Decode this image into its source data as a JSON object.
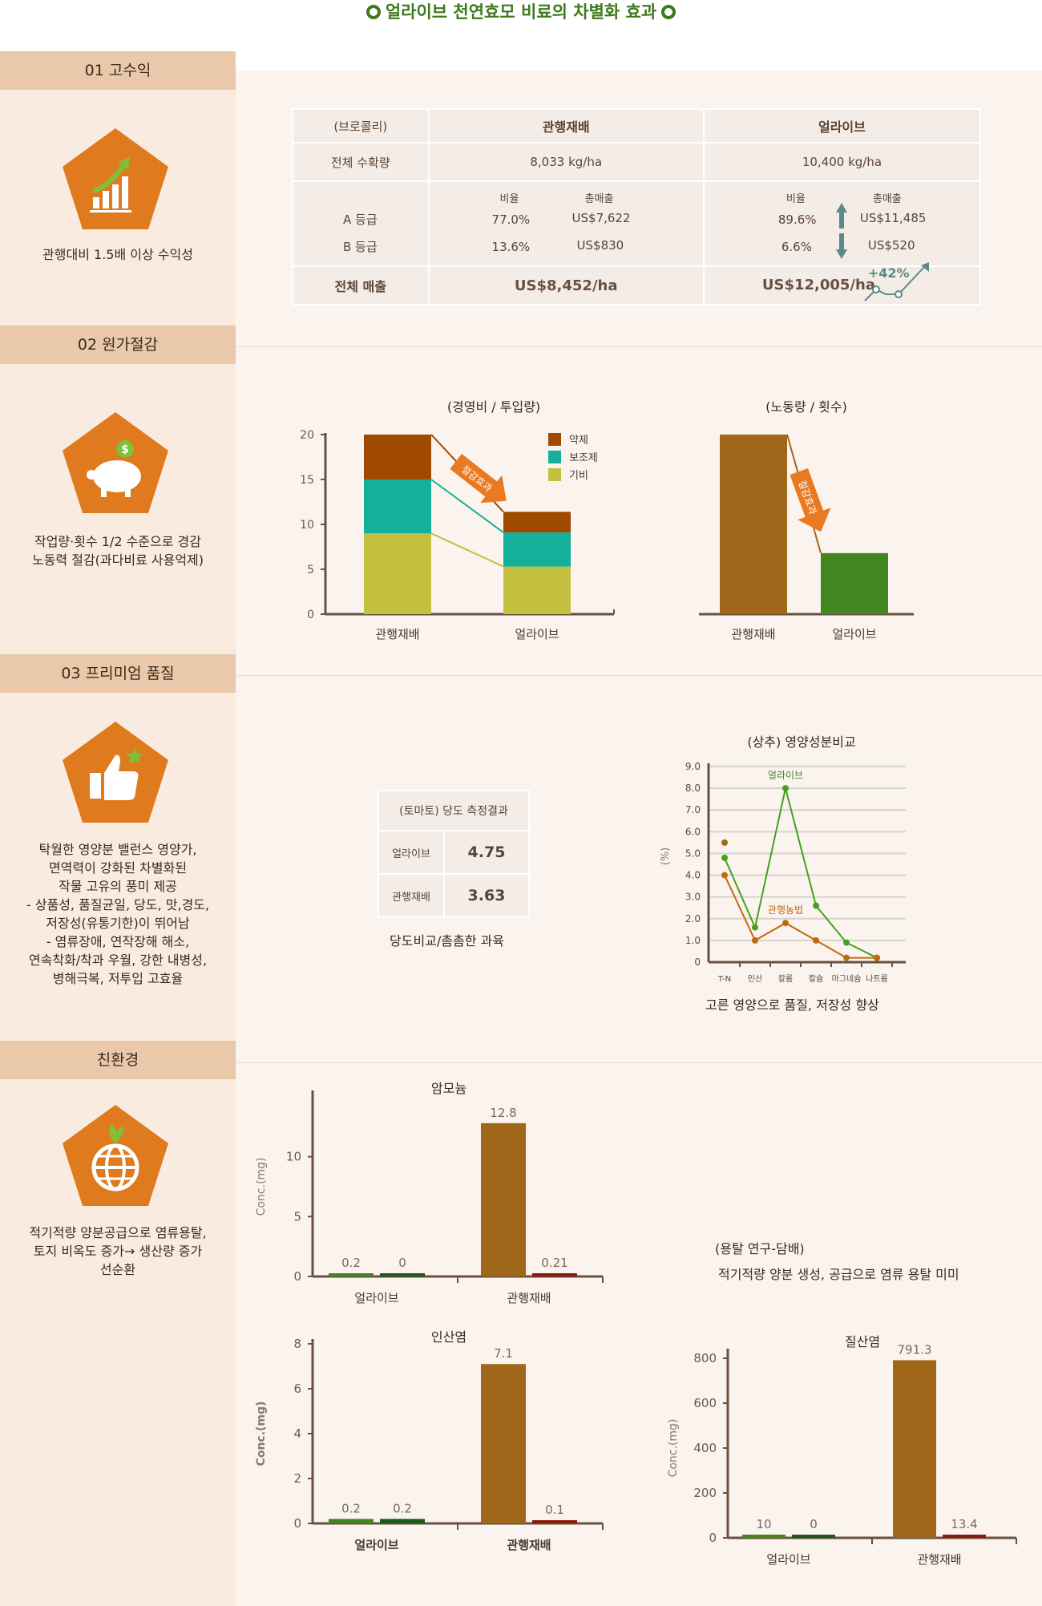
{
  "title": "얼라이브 천연효모 비료의 차별화 효과",
  "colors": {
    "accent_orange": "#e07a1f",
    "sidebar_bg": "#f9ebe0",
    "label_bg": "#e9c9aa",
    "green_text": "#3e7a1b",
    "brown_bar": "#a0661a",
    "green_bar": "#42861f",
    "dark_red_bar": "#8a1a0a"
  },
  "sections": [
    {
      "label": "01 고수익",
      "icon": "chart-up-icon",
      "text": [
        "관행대비 1.5배 이상 수익성"
      ]
    },
    {
      "label": "02 원가절감",
      "icon": "piggy-bank-icon",
      "text": [
        "작업량·횟수  1/2 수준으로 경감",
        "노동력 절감(과다비료 사용억제)"
      ]
    },
    {
      "label": "03 프리미엄 품질",
      "icon": "thumbs-up-icon",
      "text": [
        "탁월한 영양분 밸런스 영양가,",
        "면역력이 강화된 차별화된",
        "작물 고유의 풍미 제공",
        "- 상품성, 품질균일, 당도, 맛,경도,",
        "저장성(유통기한)이 뛰어남",
        "- 염류장애, 연작장해 해소,",
        "연속착화/착과 우월, 강한 내병성,",
        "병해극복, 저투입 고효율"
      ]
    },
    {
      "label": "친환경",
      "icon": "globe-leaf-icon",
      "text": [
        "적기적량 양분공급으로 염류용탈,",
        "토지 비옥도 증가→ 생산량 증가",
        "선순환"
      ]
    }
  ],
  "revenue_table": {
    "col0": "(브로콜리)",
    "col1": "관행재배",
    "col2": "얼라이브",
    "yield_label": "전체 수확량",
    "yield_conv": "8,033 kg/ha",
    "yield_alive": "10,400 kg/ha",
    "ratio_h": "비율",
    "sales_h": "총매출",
    "grade_a": "A 등급",
    "grade_b": "B 등급",
    "conv_a_ratio": "77.0%",
    "conv_a_sales": "US$7,622",
    "conv_b_ratio": "13.6%",
    "conv_b_sales": "US$830",
    "alive_a_ratio": "89.6%",
    "alive_a_sales": "US$11,485",
    "alive_b_ratio": "6.6%",
    "alive_b_sales": "US$520",
    "total_label": "전체 매출",
    "total_conv": "US$8,452/ha",
    "total_alive": "US$12,005/ha",
    "increase": "+42%"
  },
  "chart_data": [
    {
      "type": "bar",
      "stacked": true,
      "title": "(경영비 / 투입량)",
      "categories": [
        "관행재배",
        "얼라이브"
      ],
      "series": [
        {
          "name": "기비",
          "color": "#c3c040",
          "values": [
            9,
            5.3
          ]
        },
        {
          "name": "보조제",
          "color": "#14b09a",
          "values": [
            6,
            3.8
          ]
        },
        {
          "name": "약제",
          "color": "#a04a00",
          "values": [
            5,
            2.3
          ]
        }
      ],
      "ylim": [
        0,
        20
      ],
      "yticks": [
        0,
        5,
        10,
        15,
        20
      ],
      "annotation": "절감효과",
      "legend": "top-right"
    },
    {
      "type": "bar",
      "title": "(노동량 / 횟수)",
      "categories": [
        "관행재배",
        "얼라이브"
      ],
      "values": [
        20,
        6.8
      ],
      "colors": [
        "#a0661a",
        "#42861f"
      ],
      "ylim": [
        0,
        20
      ],
      "annotation": "절감효과"
    },
    {
      "type": "table",
      "title": "(토마토) 당도 측정결과",
      "rows": [
        {
          "label": "얼라이브",
          "value": "4.75"
        },
        {
          "label": "관행재배",
          "value": "3.63"
        }
      ],
      "caption": "당도비교/촘촘한 과육"
    },
    {
      "type": "line",
      "title": "(상추) 영양성분비교",
      "ylabel": "(%)",
      "categories": [
        "T-N",
        "인산",
        "칼륨",
        "칼슘",
        "마그네슘",
        "나트륨"
      ],
      "yticks": [
        "0",
        "1.0",
        "2.0",
        "3.0",
        "4.0",
        "5.0",
        "6.0",
        "7.0",
        "8.0",
        "9.0"
      ],
      "ylim": [
        0,
        9
      ],
      "series": [
        {
          "name": "얼라이브",
          "color": "#42a21f",
          "values": [
            4.8,
            1.6,
            8.0,
            2.6,
            0.9,
            0.2
          ],
          "extra_start": 5.5
        },
        {
          "name": "관행농법",
          "color": "#c06a10",
          "values": [
            4.0,
            1.0,
            1.8,
            1.0,
            0.2,
            0.2
          ]
        }
      ],
      "caption": "고른 영양으로 품질, 저장성 향상"
    },
    {
      "type": "bar",
      "title": "암모늄",
      "ylabel": "Conc.(mg)",
      "groups": [
        "얼라이브",
        "관행재배"
      ],
      "bars": [
        {
          "group": 0,
          "value": 0.2,
          "label": "0.2",
          "color": "#42861f"
        },
        {
          "group": 0,
          "value": 0,
          "label": "0",
          "color": "#1a5a1a"
        },
        {
          "group": 1,
          "value": 12.8,
          "label": "12.8",
          "color": "#a0661a"
        },
        {
          "group": 1,
          "value": 0.21,
          "label": "0.21",
          "color": "#8a1a0a"
        }
      ],
      "ylim": [
        0,
        15
      ],
      "yticks": [
        0,
        5,
        10
      ]
    },
    {
      "type": "bar",
      "title": "인산염",
      "ylabel": "Conc.(mg)",
      "groups": [
        "얼라이브",
        "관행재배"
      ],
      "bars": [
        {
          "group": 0,
          "value": 0.2,
          "label": "0.2",
          "color": "#42861f"
        },
        {
          "group": 0,
          "value": 0.2,
          "label": "0.2",
          "color": "#1a5a1a"
        },
        {
          "group": 1,
          "value": 7.1,
          "label": "7.1",
          "color": "#a0661a"
        },
        {
          "group": 1,
          "value": 0.1,
          "label": "0.1",
          "color": "#8a1a0a"
        }
      ],
      "ylim": [
        0,
        8
      ],
      "yticks": [
        0,
        2,
        4,
        6,
        8
      ]
    },
    {
      "type": "bar",
      "title": "질산염",
      "ylabel": "Conc.(mg)",
      "groups": [
        "얼라이브",
        "관행재배"
      ],
      "bars": [
        {
          "group": 0,
          "value": 10,
          "label": "10",
          "color": "#42861f"
        },
        {
          "group": 0,
          "value": 0,
          "label": "0",
          "color": "#1a5a1a"
        },
        {
          "group": 1,
          "value": 791.3,
          "label": "791.3",
          "color": "#a0661a"
        },
        {
          "group": 1,
          "value": 13.4,
          "label": "13.4",
          "color": "#8a1a0a"
        }
      ],
      "ylim": [
        0,
        800
      ],
      "yticks": [
        0,
        200,
        400,
        600,
        800
      ]
    }
  ],
  "leaching_note": {
    "title": "(용탈 연구-담배)",
    "text": "적기적량 양분 생성, 공급으로 염류 용탈 미미"
  }
}
